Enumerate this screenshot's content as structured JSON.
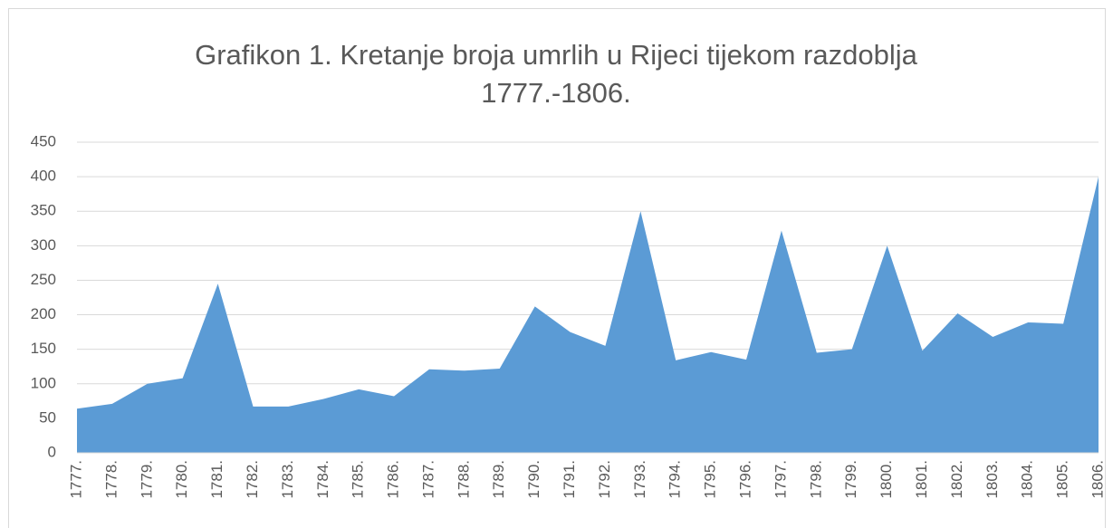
{
  "chart_data": {
    "type": "area",
    "title": "Grafikon 1. Kretanje broja umrlih u Rijeci tijekom razdoblja 1777.-1806.",
    "categories": [
      "1777.",
      "1778.",
      "1779.",
      "1780.",
      "1781.",
      "1782.",
      "1783.",
      "1784.",
      "1785.",
      "1786.",
      "1787.",
      "1788.",
      "1789.",
      "1790.",
      "1791.",
      "1792.",
      "1793.",
      "1794.",
      "1795.",
      "1796.",
      "1797.",
      "1798.",
      "1799.",
      "1800.",
      "1801.",
      "1802.",
      "1803.",
      "1804.",
      "1805.",
      "1806."
    ],
    "values": [
      64,
      71,
      100,
      108,
      245,
      67,
      67,
      78,
      92,
      82,
      121,
      119,
      122,
      212,
      175,
      155,
      350,
      134,
      146,
      135,
      322,
      145,
      150,
      300,
      148,
      202,
      168,
      189,
      187,
      400
    ],
    "color": "#5b9bd5",
    "ylim": [
      0,
      450
    ],
    "yticks": [
      0,
      50,
      100,
      150,
      200,
      250,
      300,
      350,
      400,
      450
    ],
    "grid": true
  }
}
